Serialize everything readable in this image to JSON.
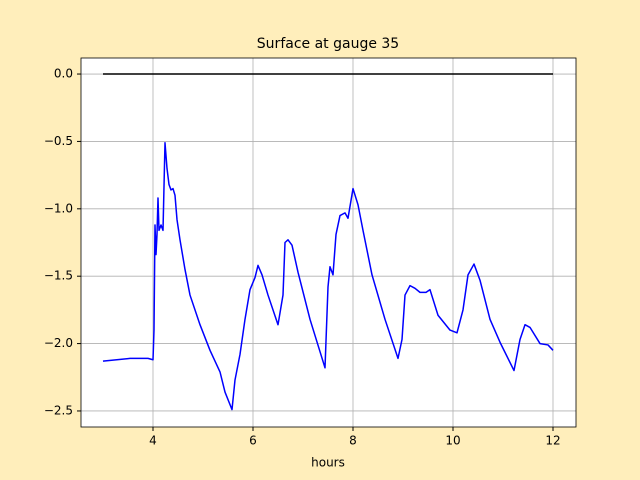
{
  "chart_data": {
    "type": "line",
    "title": "Surface at gauge 35",
    "xlabel": "hours",
    "xlim": [
      2.56,
      12.46
    ],
    "ylim": [
      -2.619,
      0.119
    ],
    "xticks": [
      4,
      6,
      8,
      10,
      12
    ],
    "yticks": [
      {
        "value": 0,
        "label": "0.0"
      },
      {
        "value": -0.5,
        "label": "−0.5"
      },
      {
        "value": -1,
        "label": "−1.0"
      },
      {
        "value": -1.5,
        "label": "−1.5"
      },
      {
        "value": -2,
        "label": "−2.0"
      },
      {
        "value": -2.5,
        "label": "−2.5"
      }
    ],
    "grid": true,
    "series": [
      {
        "color": "#000000",
        "x": [
          3.0,
          12.0
        ],
        "values": [
          0,
          0
        ]
      },
      {
        "color": "#0000ff",
        "x": [
          3.0,
          3.54,
          3.9,
          4.0,
          4.02,
          4.04,
          4.06,
          4.08,
          4.1,
          4.12,
          4.16,
          4.2,
          4.24,
          4.28,
          4.32,
          4.36,
          4.4,
          4.44,
          4.48,
          4.54,
          4.64,
          4.74,
          4.94,
          5.14,
          5.34,
          5.44,
          5.58,
          5.64,
          5.74,
          5.84,
          5.94,
          6.04,
          6.1,
          6.18,
          6.3,
          6.5,
          6.6,
          6.64,
          6.7,
          6.78,
          6.9,
          7.14,
          7.44,
          7.5,
          7.54,
          7.6,
          7.66,
          7.74,
          7.84,
          7.9,
          8.0,
          8.1,
          8.2,
          8.38,
          8.64,
          8.9,
          8.98,
          9.04,
          9.14,
          9.24,
          9.34,
          9.46,
          9.54,
          9.7,
          9.94,
          10.08,
          10.2,
          10.3,
          10.42,
          10.54,
          10.74,
          10.94,
          11.22,
          11.34,
          11.44,
          11.54,
          11.74,
          11.9,
          12.0
        ],
        "values": [
          -2.13,
          -2.11,
          -2.11,
          -2.12,
          -1.9,
          -1.12,
          -1.34,
          -1.19,
          -0.92,
          -1.16,
          -1.12,
          -1.16,
          -0.51,
          -0.7,
          -0.82,
          -0.86,
          -0.85,
          -0.9,
          -1.08,
          -1.23,
          -1.45,
          -1.64,
          -1.86,
          -2.05,
          -2.21,
          -2.36,
          -2.49,
          -2.27,
          -2.08,
          -1.82,
          -1.6,
          -1.51,
          -1.42,
          -1.49,
          -1.64,
          -1.86,
          -1.64,
          -1.25,
          -1.23,
          -1.27,
          -1.47,
          -1.82,
          -2.18,
          -1.58,
          -1.43,
          -1.49,
          -1.19,
          -1.05,
          -1.03,
          -1.07,
          -0.85,
          -0.97,
          -1.16,
          -1.49,
          -1.82,
          -2.11,
          -1.97,
          -1.64,
          -1.57,
          -1.59,
          -1.62,
          -1.62,
          -1.6,
          -1.79,
          -1.9,
          -1.92,
          -1.75,
          -1.49,
          -1.41,
          -1.53,
          -1.82,
          -1.99,
          -2.2,
          -1.97,
          -1.86,
          -1.88,
          -2.0,
          -2.01,
          -2.05
        ]
      }
    ]
  }
}
